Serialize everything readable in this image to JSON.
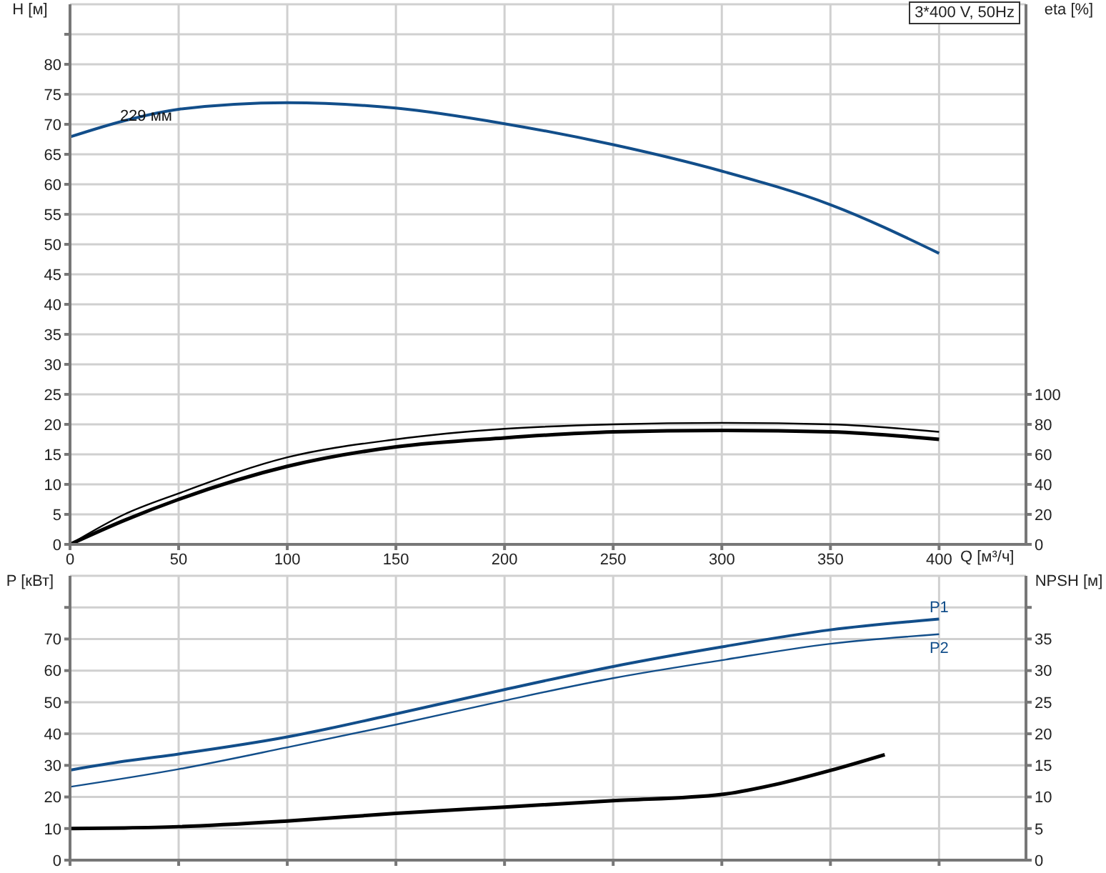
{
  "chart_data": [
    {
      "type": "line",
      "title": "3*400 V, 50Hz",
      "xlabel": "Q [м³/ч]",
      "ylabel": "H [м]",
      "y2label": "eta [%]",
      "xlim": [
        0,
        440
      ],
      "xticks": [
        0,
        50,
        100,
        150,
        200,
        250,
        300,
        350,
        400
      ],
      "ylim": [
        0,
        90
      ],
      "yticks": [
        0,
        5,
        10,
        15,
        20,
        25,
        30,
        35,
        40,
        45,
        50,
        55,
        60,
        65,
        70,
        75,
        80,
        {
          "value": 85,
          "label": null
        }
      ],
      "y2lim": [
        0,
        360
      ],
      "y2ticks": [
        0,
        20,
        40,
        60,
        80,
        100
      ],
      "grid": true,
      "marker": "none",
      "line_style": "solid",
      "annotations": [
        {
          "text": "229 мм",
          "x": 35,
          "y": 71.5
        }
      ],
      "series": [
        {
          "color": "#124e8a",
          "x": [
            0,
            25,
            50,
            100,
            150,
            200,
            250,
            300,
            350,
            400
          ],
          "values": [
            67.9,
            70.6,
            72.5,
            73.6,
            72.7,
            70.1,
            66.6,
            62.2,
            56.6,
            48.5
          ]
        },
        {
          "color": "#000000",
          "axis": "y2",
          "x": [
            0,
            25,
            50,
            100,
            150,
            200,
            250,
            300,
            350,
            400
          ],
          "values": [
            0,
            20,
            34,
            58,
            70,
            77,
            80,
            81,
            80,
            75
          ]
        },
        {
          "color": "#000000",
          "axis": "y2",
          "x": [
            0,
            25,
            50,
            100,
            150,
            200,
            250,
            300,
            350,
            400
          ],
          "values": [
            0,
            16,
            30,
            52,
            65,
            71,
            75,
            76,
            75,
            70
          ]
        }
      ]
    },
    {
      "type": "line",
      "ylabel": "P [кВт]",
      "y2label": "NPSH [м]",
      "xlim": [
        0,
        440
      ],
      "xticks": [
        0,
        50,
        100,
        150,
        200,
        250,
        300,
        350,
        400
      ],
      "tick_labels": "y",
      "ylim": [
        0,
        90
      ],
      "yticks": [
        0,
        10,
        20,
        30,
        40,
        50,
        60,
        70,
        {
          "value": 80,
          "label": null
        }
      ],
      "y2lim": [
        0,
        45
      ],
      "y2ticks": [
        0,
        5,
        10,
        15,
        20,
        25,
        30,
        35,
        {
          "value": 40,
          "label": null
        }
      ],
      "grid": true,
      "marker": "none",
      "line_style": "solid",
      "series": [
        {
          "name": "P1",
          "color": "#124e8a",
          "x": [
            0,
            25,
            50,
            100,
            150,
            200,
            250,
            300,
            350,
            400
          ],
          "values": [
            28.5,
            31.3,
            33.6,
            39,
            46.3,
            54,
            61.3,
            67.5,
            72.9,
            76.3
          ]
        },
        {
          "name": "P2",
          "color": "#124e8a",
          "x": [
            0,
            50,
            100,
            150,
            200,
            250,
            300,
            350,
            400
          ],
          "values": [
            23.2,
            28.8,
            35.7,
            42.9,
            50.5,
            57.6,
            63.3,
            68.5,
            71.5
          ]
        },
        {
          "color": "#000000",
          "axis": "y2",
          "x": [
            0,
            25,
            50,
            100,
            150,
            200,
            250,
            300,
            325,
            350,
            375
          ],
          "values": [
            5,
            5.1,
            5.3,
            6.2,
            7.4,
            8.4,
            9.4,
            10.4,
            12,
            14.2,
            16.7
          ]
        }
      ]
    }
  ]
}
